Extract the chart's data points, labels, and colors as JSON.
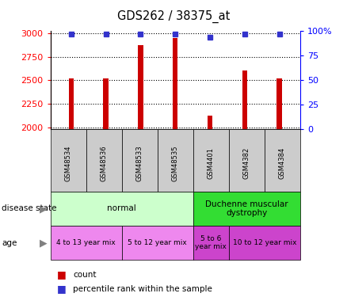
{
  "title": "GDS262 / 38375_at",
  "samples": [
    "GSM48534",
    "GSM48536",
    "GSM48533",
    "GSM48535",
    "GSM4401",
    "GSM4382",
    "GSM4384"
  ],
  "counts": [
    2520,
    2520,
    2870,
    2950,
    2125,
    2600,
    2520
  ],
  "percentiles": [
    97,
    97,
    97,
    97,
    94,
    97,
    97
  ],
  "ylim_left": [
    1980,
    3020
  ],
  "ylim_right": [
    0,
    100
  ],
  "yticks_left": [
    2000,
    2250,
    2500,
    2750,
    3000
  ],
  "yticks_right": [
    0,
    25,
    50,
    75,
    100
  ],
  "bar_color": "#cc0000",
  "dot_color": "#3333cc",
  "disease_state_groups": [
    {
      "label": "normal",
      "start": 0,
      "end": 4,
      "color": "#ccffcc"
    },
    {
      "label": "Duchenne muscular\ndystrophy",
      "start": 4,
      "end": 7,
      "color": "#33dd33"
    }
  ],
  "age_groups": [
    {
      "label": "4 to 13 year mix",
      "start": 0,
      "end": 2,
      "color": "#ee88ee"
    },
    {
      "label": "5 to 12 year mix",
      "start": 2,
      "end": 4,
      "color": "#ee88ee"
    },
    {
      "label": "5 to 6\nyear mix",
      "start": 4,
      "end": 5,
      "color": "#cc44cc"
    },
    {
      "label": "10 to 12 year mix",
      "start": 5,
      "end": 7,
      "color": "#cc44cc"
    }
  ],
  "label_disease_state": "disease state",
  "label_age": "age",
  "legend_count": "count",
  "legend_percentile": "percentile rank within the sample",
  "background_color": "#ffffff",
  "xtick_bg": "#cccccc",
  "bar_width": 0.15
}
